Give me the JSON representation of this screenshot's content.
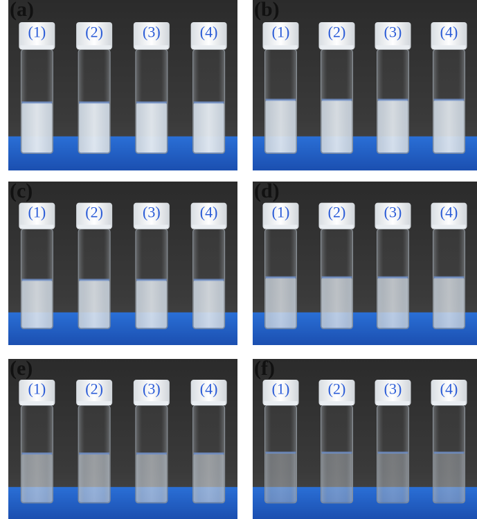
{
  "panels": [
    {
      "label": "(a)",
      "vials": [
        "(1)",
        "(2)",
        "(3)",
        "(4)"
      ]
    },
    {
      "label": "(b)",
      "vials": [
        "(1)",
        "(2)",
        "(3)",
        "(4)"
      ]
    },
    {
      "label": "(c)",
      "vials": [
        "(1)",
        "(2)",
        "(3)",
        "(4)"
      ]
    },
    {
      "label": "(d)",
      "vials": [
        "(1)",
        "(2)",
        "(3)",
        "(4)"
      ]
    },
    {
      "label": "(e)",
      "vials": [
        "(1)",
        "(2)",
        "(3)",
        "(4)"
      ]
    },
    {
      "label": "(f)",
      "vials": [
        "(1)",
        "(2)",
        "(3)",
        "(4)"
      ]
    }
  ]
}
